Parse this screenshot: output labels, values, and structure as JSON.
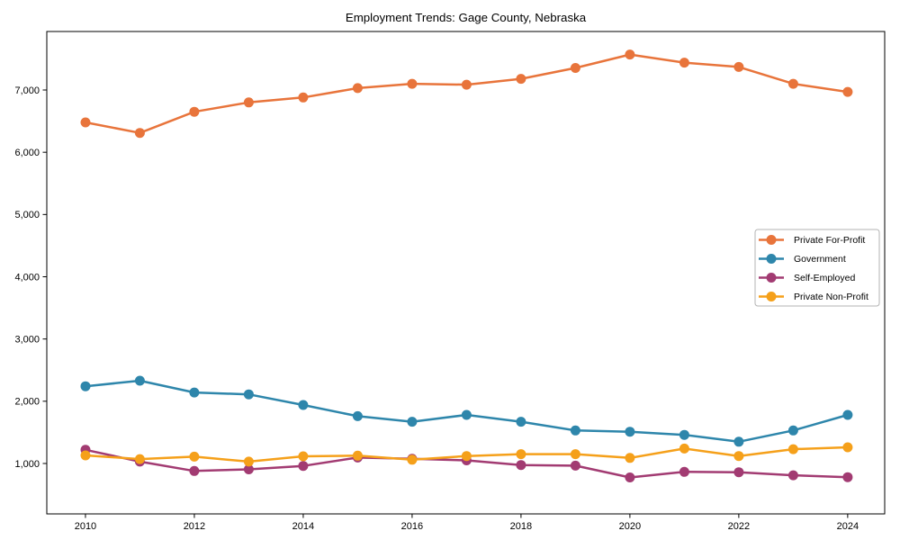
{
  "figure": {
    "title": "Employment Trends: Gage County, Nebraska"
  },
  "chart_data": {
    "type": "line",
    "title": "Employment Trends: Gage County, Nebraska",
    "xlabel": "",
    "ylabel": "",
    "grid": false,
    "marker": "circle",
    "x": [
      2010,
      2011,
      2012,
      2013,
      2014,
      2015,
      2016,
      2017,
      2018,
      2019,
      2020,
      2021,
      2022,
      2023,
      2024
    ],
    "series": [
      {
        "name": "Private For-Profit",
        "color": "#E8743B",
        "values": [
          6480,
          6310,
          6650,
          6800,
          6880,
          7030,
          7100,
          7085,
          7180,
          7355,
          7570,
          7440,
          7370,
          7100,
          6970
        ]
      },
      {
        "name": "Government",
        "color": "#2E86AB",
        "values": [
          2240,
          2330,
          2140,
          2110,
          1940,
          1760,
          1670,
          1780,
          1670,
          1530,
          1510,
          1460,
          1350,
          1530,
          1780
        ]
      },
      {
        "name": "Self-Employed",
        "color": "#A23B72",
        "values": [
          1220,
          1030,
          880,
          905,
          960,
          1095,
          1075,
          1050,
          975,
          965,
          775,
          865,
          860,
          810,
          780
        ]
      },
      {
        "name": "Private Non-Profit",
        "color": "#F5A01A",
        "values": [
          1130,
          1070,
          1110,
          1030,
          1115,
          1125,
          1060,
          1120,
          1150,
          1150,
          1090,
          1240,
          1120,
          1230,
          1260
        ]
      }
    ],
    "x_ticks": [
      2010,
      2012,
      2014,
      2016,
      2018,
      2020,
      2022,
      2024
    ],
    "x_tick_labels": [
      "2010",
      "2012",
      "2014",
      "2016",
      "2018",
      "2020",
      "2022",
      "2024"
    ],
    "y_ticks": [
      1000,
      2000,
      3000,
      4000,
      5000,
      6000,
      7000
    ],
    "y_tick_labels": [
      "1,000",
      "2,000",
      "3,000",
      "4,000",
      "5,000",
      "6,000",
      "7,000"
    ],
    "xlim": [
      2009.29,
      2024.68
    ],
    "ylim": [
      190,
      7940
    ],
    "legend": {
      "position": "center-right",
      "entries": [
        "Private For-Profit",
        "Government",
        "Self-Employed",
        "Private Non-Profit"
      ]
    },
    "colors": {
      "spine": "#000000",
      "background": "#ffffff",
      "legend_border": "#b3b3b3"
    }
  }
}
